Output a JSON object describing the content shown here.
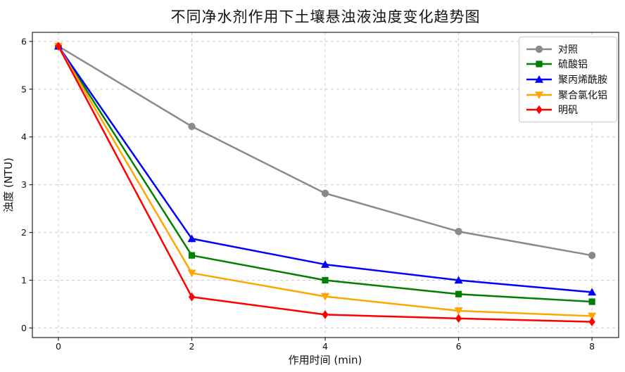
{
  "chart_data": {
    "type": "line",
    "title": "不同净水剂作用下土壤悬浊液浊度变化趋势图",
    "xlabel": "作用时间 (min)",
    "ylabel": "浊度 (NTU)",
    "x": [
      0,
      2,
      4,
      6,
      8
    ],
    "xticks": [
      "0",
      "2",
      "4",
      "6",
      "8"
    ],
    "yticks": [
      "0",
      "1",
      "2",
      "3",
      "4",
      "5",
      "6"
    ],
    "ytick_values": [
      0,
      1,
      2,
      3,
      4,
      5,
      6
    ],
    "xlim": [
      -0.39,
      8.4
    ],
    "ylim": [
      -0.2,
      6.19
    ],
    "grid": true,
    "grid_style": "dashed",
    "grid_color": "#cccccc",
    "spine_color": "#262626",
    "legend_position": "upper right",
    "series": [
      {
        "name": "对照",
        "color": "#8a8a8a",
        "marker": "circle",
        "values": [
          5.9,
          4.22,
          2.82,
          2.02,
          1.52
        ]
      },
      {
        "name": "硫酸铝",
        "color": "#008000",
        "marker": "square",
        "values": [
          5.9,
          1.52,
          1.0,
          0.71,
          0.55
        ]
      },
      {
        "name": "聚丙烯酰胺",
        "color": "#0000ff",
        "marker": "triangle-up",
        "values": [
          5.9,
          1.87,
          1.33,
          1.0,
          0.75
        ]
      },
      {
        "name": "聚合氯化铝",
        "color": "#ffa500",
        "marker": "triangle-down",
        "values": [
          5.9,
          1.15,
          0.66,
          0.36,
          0.25
        ]
      },
      {
        "name": "明矾",
        "color": "#ff0000",
        "marker": "diamond",
        "values": [
          5.9,
          0.65,
          0.28,
          0.2,
          0.13
        ]
      }
    ]
  }
}
